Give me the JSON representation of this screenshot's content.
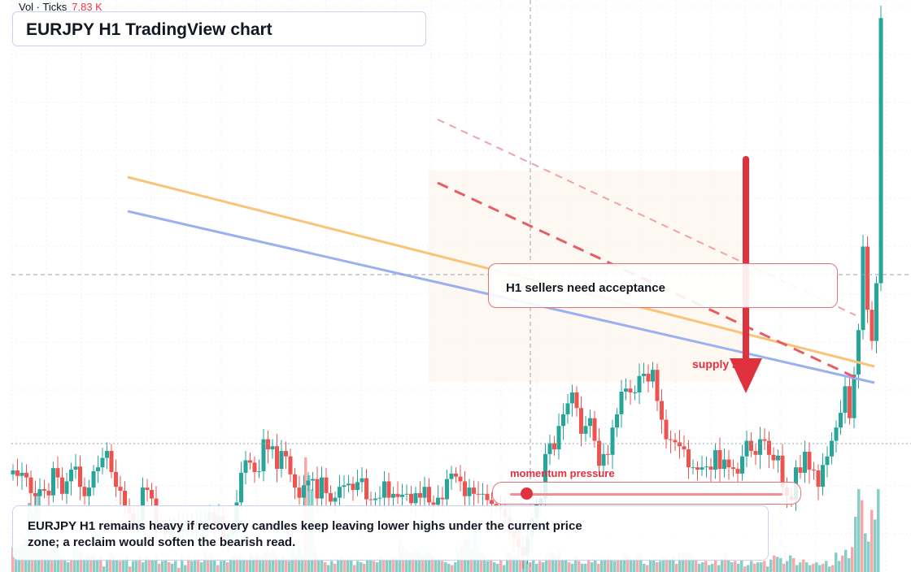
{
  "header": {
    "volume_label": "Vol · Ticks",
    "volume_value": "7.83 K"
  },
  "title": "EURJPY H1 TradingView chart",
  "annotations": {
    "note": "H1 sellers need acceptance",
    "zone": "supply zone",
    "momentum_label": "momentum pressure",
    "momentum_level": 0.06,
    "summary": "EURJPY H1 remains heavy if recovery candles keep leaving lower highs under the current price zone; a reclaim would soften the bearish read."
  },
  "colors": {
    "bull": "#26a69a",
    "bear": "#ef5350",
    "orange_line": "#f9c47a",
    "blue_line": "#9ab0f0",
    "dashed_red": "#e85c66",
    "arrow": "#e0313f"
  },
  "chart_data": {
    "type": "candlestick",
    "series": [
      {
        "name": "price",
        "close": [
          125,
          118,
          122,
          116,
          96,
          92,
          101,
          99,
          93,
          128,
          116,
          95,
          111,
          126,
          130,
          104,
          92,
          103,
          124,
          129,
          141,
          150,
          123,
          104,
          99,
          79,
          70,
          58,
          62,
          103,
          100,
          89,
          51,
          52,
          44,
          56,
          58,
          47,
          57,
          61,
          51,
          58,
          60,
          62,
          71,
          52,
          67,
          37,
          43,
          46,
          84,
          122,
          138,
          135,
          123,
          124,
          165,
          152,
          156,
          127,
          150,
          143,
          120,
          103,
          90,
          106,
          112,
          114,
          89,
          116,
          96,
          85,
          90,
          104,
          106,
          108,
          100,
          110,
          115,
          88,
          87,
          89,
          90,
          111,
          90,
          95,
          91,
          94,
          95,
          83,
          96,
          90,
          104,
          84,
          81,
          90,
          88,
          114,
          121,
          117,
          111,
          92,
          103,
          95,
          94,
          95,
          87,
          82,
          78,
          76,
          65,
          48,
          38,
          27,
          16,
          40,
          63,
          82,
          89,
          146,
          160,
          152,
          182,
          197,
          211,
          225,
          205,
          172,
          182,
          192,
          163,
          131,
          146,
          145,
          180,
          197,
          226,
          230,
          225,
          225,
          246,
          249,
          239,
          254,
          214,
          190,
          165,
          164,
          161,
          156,
          152,
          129,
          129,
          126,
          129,
          130,
          126,
          151,
          127,
          139,
          129,
          127,
          121,
          143,
          163,
          150,
          145,
          165,
          163,
          145,
          138,
          144,
          103,
          92,
          87,
          129,
          122,
          149,
          126,
          125,
          104,
          132,
          143,
          163,
          180,
          199,
          233,
          192,
          248,
          305,
          412,
          331,
          291,
          365,
          705
        ]
      },
      {
        "name": "volume",
        "values": [
          0.18,
          0.18,
          0.2,
          0.2,
          0.25,
          0.5,
          0.45,
          0.55,
          0.58,
          0.2,
          0.2,
          0.15,
          0.18,
          0.2,
          0.16,
          0.1,
          0.1,
          0.07,
          0.09,
          0.2,
          0.18,
          0.15,
          0.1,
          0.14,
          0.12,
          0.12,
          0.09,
          0.11,
          0.04,
          0.09,
          0.13,
          0.12,
          0.09,
          0.08,
          0.1,
          0.12,
          0.04,
          0.08,
          0.09,
          0.11,
          0.07,
          0.12,
          0.1,
          0.09,
          0.12,
          0.06,
          0.08,
          0.1,
          0.07,
          0.06,
          0.08,
          0.03,
          0.12,
          0.05,
          0.1,
          0.08,
          0.11,
          0.09,
          0.07,
          0.15,
          0.12,
          0.14,
          0.1,
          0.05,
          0.08,
          0.09,
          0.07,
          0.11,
          0.12,
          0.1,
          0.13,
          0.11,
          0.09,
          0.14,
          0.12,
          0.13,
          0.11,
          0.13,
          0.15,
          0.14,
          0.16,
          0.12,
          0.1,
          0.11,
          0.09,
          0.08,
          0.22,
          0.12,
          0.17,
          0.12,
          0.83,
          0.7,
          0.6,
          0.18,
          0.11,
          0.09,
          0.07,
          0.05,
          0.08,
          0.06,
          0.1,
          0.12,
          0.09,
          0.1,
          0.11,
          0.05,
          0.08,
          0.07,
          0.06,
          0.09,
          0.1,
          0.08,
          0.07,
          0.12,
          0.1,
          0.09,
          0.1,
          0.11,
          0.11,
          0.24,
          0.18,
          0.16,
          0.14,
          0.14,
          0.16,
          0.13,
          0.12,
          0.13,
          0.15,
          0.12,
          0.09,
          0.1,
          0.08,
          0.07,
          0.06,
          0.05,
          0.07,
          0.15,
          0.2,
          0.24,
          0.24,
          0.16,
          0.3,
          0.18,
          0.14,
          0.12,
          0.08,
          0.1,
          0.07,
          0.06,
          0.09,
          0.05,
          0.15,
          0.14,
          0.12,
          0.13,
          0.1,
          0.09,
          0.08,
          0.07,
          0.1,
          0.06,
          0.08,
          0.07,
          0.12,
          0.15,
          0.14,
          0.13,
          0.16,
          0.1,
          0.09,
          0.07,
          0.06,
          0.11,
          0.08,
          0.06,
          0.06,
          0.09,
          0.07,
          0.1,
          0.06,
          0.1,
          0.1,
          0.12,
          0.1,
          0.08,
          0.09,
          0.09,
          0.14,
          0.11,
          0.1,
          0.1,
          0.13,
          0.12,
          0.06,
          0.05,
          0.09,
          0.1,
          0.07,
          0.08,
          0.11,
          0.1,
          0.09,
          0.12,
          0.06,
          0.14,
          0.14,
          0.14,
          0.14,
          0.11,
          0.1,
          0.06,
          0.07,
          0.08,
          0.05,
          0.06,
          0.09,
          0.05,
          0.1,
          0.14,
          0.09,
          0.07,
          0.08,
          0.06,
          0.09,
          0.04,
          0.05,
          0.08,
          0.06,
          0.07,
          0.07,
          0.08,
          0.04,
          0.09,
          0.12,
          0.11,
          0.1,
          0.06,
          0.08,
          0.12,
          0.1,
          0.05,
          0.07,
          0.09,
          0.07,
          0.05,
          0.06,
          0.07,
          0.05,
          0.06,
          0.08,
          0.04,
          0.05,
          0.14,
          0.08,
          0.12,
          0.16,
          0.1,
          0.18,
          0.4,
          0.6,
          0.52,
          0.28,
          0.22,
          0.45,
          0.38,
          0.6
        ]
      }
    ]
  }
}
